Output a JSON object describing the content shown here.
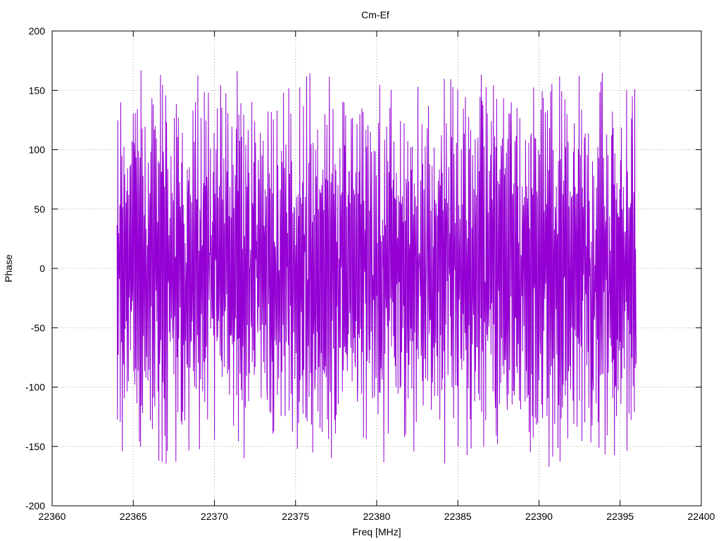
{
  "chart_data": {
    "type": "line",
    "title": "Cm-Ef",
    "xlabel": "Freq [MHz]",
    "ylabel": "Phase",
    "xlim": [
      22360,
      22400
    ],
    "ylim": [
      -200,
      200
    ],
    "xticks": [
      22360,
      22365,
      22370,
      22375,
      22380,
      22385,
      22390,
      22395,
      22400
    ],
    "xtick_labels": [
      "22360",
      "22365",
      "22370",
      "22375",
      "22380",
      "22385",
      "22390",
      "22395",
      "22400"
    ],
    "yticks": [
      200,
      150,
      100,
      50,
      0,
      -50,
      -100,
      -150,
      -200
    ],
    "ytick_labels": [
      "200",
      "150",
      "100",
      "50",
      "0",
      "-50",
      "-100",
      "-150",
      "-200"
    ],
    "grid": true,
    "grid_style": "dotted",
    "series": [
      {
        "color": "#9400d3",
        "x_start": 22364,
        "x_end": 22396,
        "points": 1280,
        "value_range": [
          -180,
          180
        ],
        "description": "densely oscillating phase values wrapping between -180 and 180 degrees"
      }
    ]
  }
}
